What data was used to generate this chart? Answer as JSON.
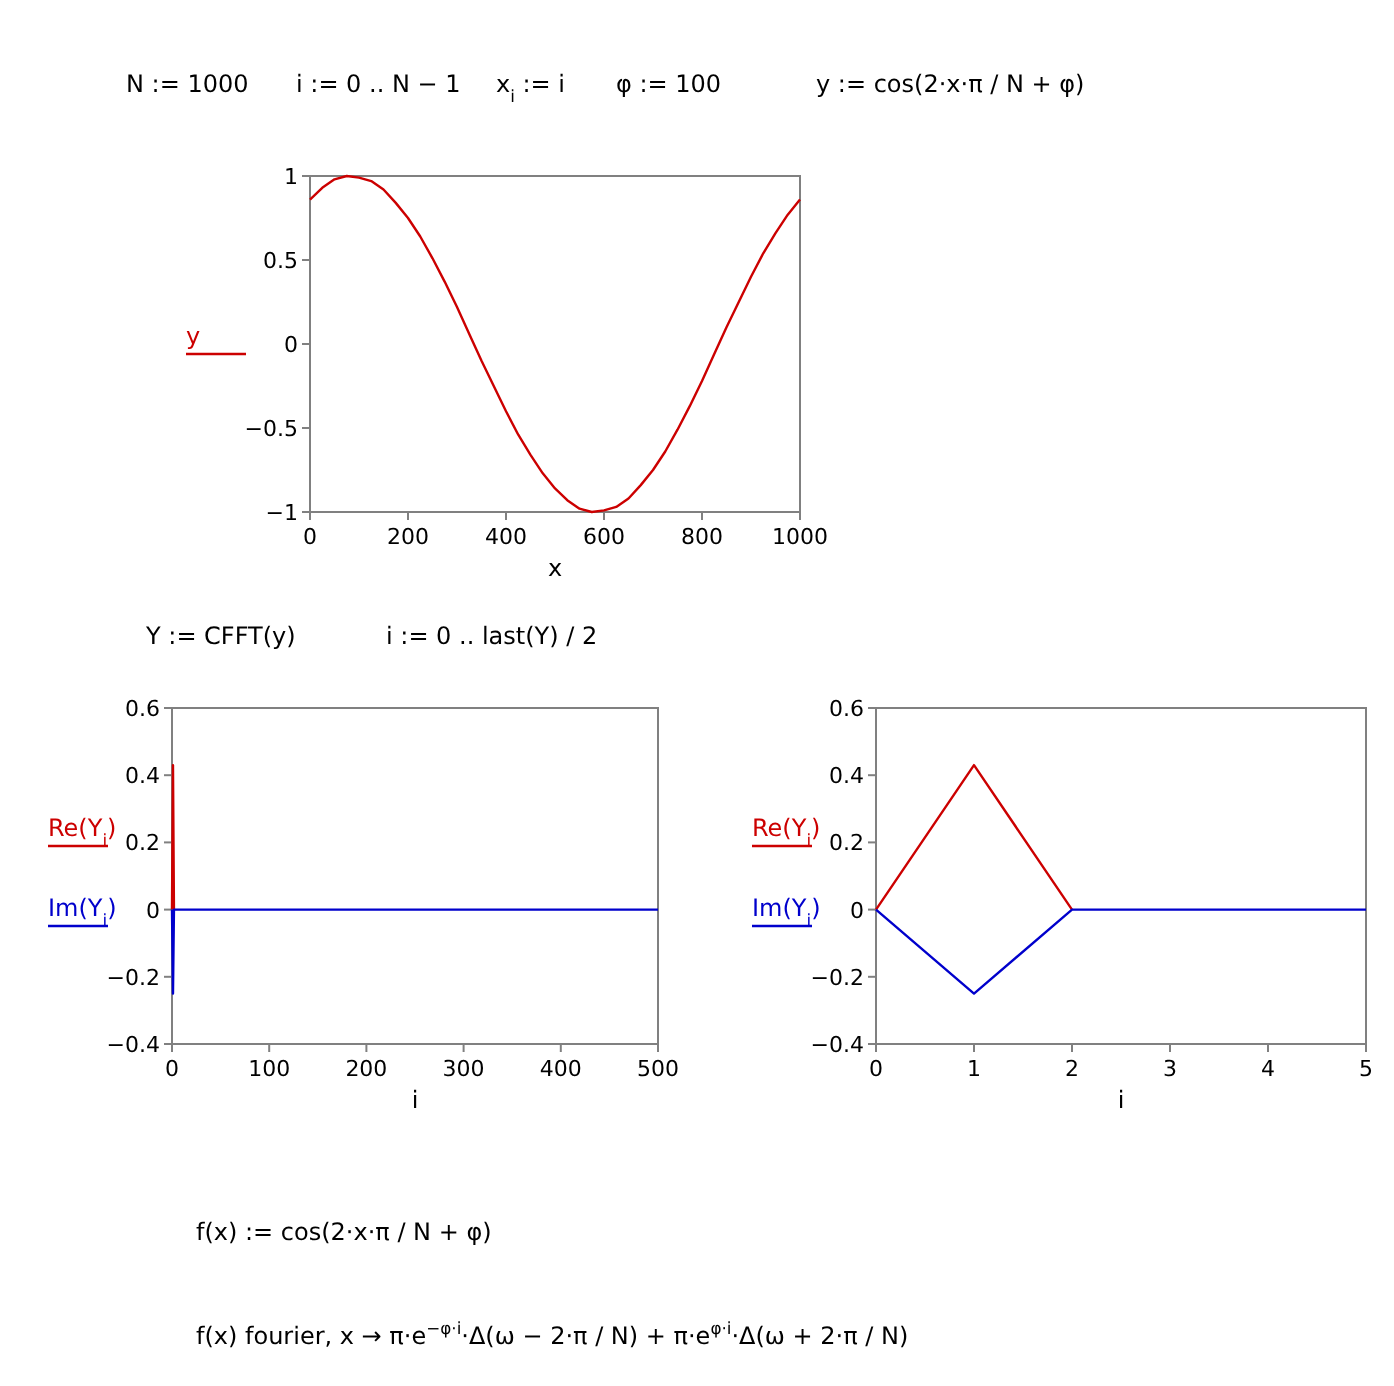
{
  "chart_data": [
    {
      "type": "line",
      "xlabel": "x",
      "legend": "left",
      "xlim": [
        0,
        1000
      ],
      "xticks": [
        0,
        200,
        400,
        600,
        800,
        1000
      ],
      "ylim": [
        -1,
        1
      ],
      "yticks": [
        {
          "value": -1,
          "label": "−1"
        },
        {
          "value": -0.5,
          "label": "−0.5"
        },
        0,
        0.5,
        1
      ],
      "annotations": [
        "N := 1000",
        "i := 0 .. N − 1",
        "x$_{i}$ := i",
        "φ := 100",
        "y := cos(2·x·π / N + φ)"
      ],
      "series": [
        {
          "name": "y",
          "color": "#cc0000",
          "x": [
            0,
            25,
            50,
            75,
            100,
            125,
            150,
            175,
            200,
            225,
            250,
            275,
            300,
            325,
            350,
            375,
            400,
            425,
            450,
            475,
            500,
            525,
            550,
            575,
            600,
            625,
            650,
            675,
            700,
            725,
            750,
            775,
            800,
            825,
            850,
            875,
            900,
            925,
            950,
            975,
            1000
          ],
          "values": [
            0.86,
            0.93,
            0.98,
            1.0,
            0.99,
            0.97,
            0.92,
            0.84,
            0.75,
            0.64,
            0.51,
            0.37,
            0.22,
            0.06,
            -0.1,
            -0.25,
            -0.4,
            -0.54,
            -0.66,
            -0.77,
            -0.86,
            -0.93,
            -0.98,
            -1.0,
            -0.99,
            -0.97,
            -0.92,
            -0.84,
            -0.75,
            -0.64,
            -0.51,
            -0.37,
            -0.22,
            -0.06,
            0.1,
            0.25,
            0.4,
            0.54,
            0.66,
            0.77,
            0.86
          ]
        }
      ]
    },
    {
      "type": "line",
      "xlabel": "i",
      "legend": "left",
      "xlim": [
        0,
        500
      ],
      "xticks": [
        0,
        100,
        200,
        300,
        400,
        500
      ],
      "ylim": [
        -0.4,
        0.6
      ],
      "yticks": [
        {
          "value": -0.4,
          "label": "−0.4"
        },
        {
          "value": -0.2,
          "label": "−0.2"
        },
        0,
        0.2,
        0.4,
        0.6
      ],
      "annotations": [
        "Y := CFFT(y)",
        "i := 0 .. last(Y) / 2"
      ],
      "series": [
        {
          "name": "Re(Y$_{i}$)",
          "color": "#cc0000",
          "x": [
            0,
            1,
            2
          ],
          "values": [
            0,
            0.43,
            0
          ]
        },
        {
          "name": "Im(Y$_{i}$)",
          "color": "#0000cc",
          "x": [
            0,
            1,
            2,
            500
          ],
          "values": [
            0,
            -0.25,
            0,
            0
          ]
        }
      ]
    },
    {
      "type": "line",
      "xlabel": "i",
      "legend": "left",
      "xlim": [
        0,
        5
      ],
      "xticks": [
        0,
        1,
        2,
        3,
        4,
        5
      ],
      "ylim": [
        -0.4,
        0.6
      ],
      "yticks": [
        {
          "value": -0.4,
          "label": "−0.4"
        },
        {
          "value": -0.2,
          "label": "−0.2"
        },
        0,
        0.2,
        0.4,
        0.6
      ],
      "annotations": [
        "f(x) := cos(2·x·π / N + φ)",
        "f(x) fourier, x → π·e$^{−φ·i}$·Δ(ω − 2·π / N) + π·e$^{φ·i}$·Δ(ω + 2·π / N)"
      ],
      "series": [
        {
          "name": "Re(Y$_{i}$)",
          "color": "#cc0000",
          "x": [
            0,
            1,
            2
          ],
          "values": [
            0,
            0.43,
            0
          ]
        },
        {
          "name": "Im(Y$_{i}$)",
          "color": "#0000cc",
          "x": [
            0,
            1,
            2,
            3,
            4,
            5
          ],
          "values": [
            0,
            -0.25,
            0,
            0,
            0,
            0
          ]
        }
      ]
    }
  ]
}
